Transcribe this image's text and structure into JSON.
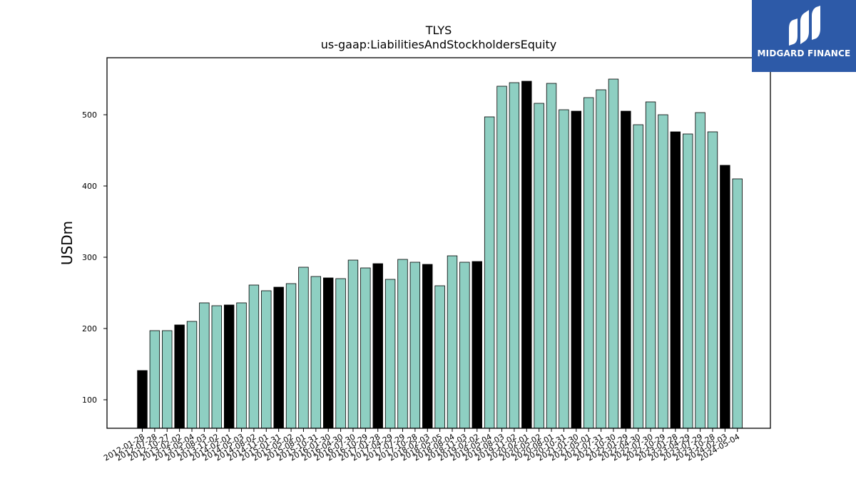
{
  "brand": {
    "name": "MIDGARD FINANCE",
    "bg_color": "#2d5aa8"
  },
  "chart_data": {
    "type": "bar",
    "title": "TLYS",
    "subtitle": "us-gaap:LiabilitiesAndStockholdersEquity",
    "xlabel": "",
    "ylabel": "USDm",
    "ylim": [
      60,
      580
    ],
    "yticks": [
      100,
      200,
      300,
      400,
      500
    ],
    "grid": false,
    "colors": {
      "regular": "#8ecfc2",
      "highlight": "#000000",
      "edge": "#000000"
    },
    "categories": [
      "2012-01-28",
      "2012-07-28",
      "2012-10-27",
      "2013-02-02",
      "2013-05-04",
      "2013-08-03",
      "2013-11-02",
      "2014-02-01",
      "2014-05-03",
      "2014-08-02",
      "2014-11-01",
      "2015-01-31",
      "2015-05-02",
      "2015-08-01",
      "2015-10-31",
      "2016-01-30",
      "2016-04-30",
      "2016-07-30",
      "2016-10-29",
      "2017-01-28",
      "2017-04-29",
      "2017-07-29",
      "2017-10-28",
      "2018-02-03",
      "2018-05-05",
      "2018-08-04",
      "2018-11-03",
      "2019-02-02",
      "2019-05-04",
      "2019-08-03",
      "2019-11-02",
      "2020-02-01",
      "2020-05-02",
      "2020-08-01",
      "2020-10-31",
      "2021-01-30",
      "2021-05-01",
      "2021-07-31",
      "2021-10-30",
      "2022-01-29",
      "2022-04-30",
      "2022-07-30",
      "2022-10-29",
      "2023-01-28",
      "2023-04-29",
      "2023-07-29",
      "2023-10-28",
      "2024-02-03",
      "2024-05-04"
    ],
    "tick_labels": [
      "2012-01-28",
      "2012-07-28",
      "2012-10-27",
      "2013-02-02",
      "2013-05-04",
      "2013-08-03",
      "2013-11-02",
      "2014-02-01",
      "2014-05-03",
      "2014-08-02",
      "2014-11-01",
      "2015-01-31",
      "2015-05-02",
      "2015-08-01",
      "2015-10-31",
      "2016-01-30",
      "2016-04-30",
      "2016-07-30",
      "2016-10-29",
      "2017-01-28",
      "2017-04-29",
      "2017-07-29",
      "2017-10-28",
      "2018-02-03",
      "2018-05-05",
      "2018-08-04",
      "2018-11-03",
      "2019-02-02",
      "2019-05-04",
      "2019-08-03",
      "2019-11-02",
      "2020-02-01",
      "2020-05-02",
      "2020-08-01",
      "2020-10-31",
      "2021-01-30",
      "2021-05-01",
      "2021-07-31",
      "2021-10-30",
      "2022-01-29",
      "2022-04-30",
      "2022-07-30",
      "2022-10-29",
      "2023-01-28",
      "2023-04-29",
      "2023-07-29",
      "2023-10-28",
      "2024-02-03",
      "2024-05-04"
    ],
    "values": [
      141,
      197,
      197,
      205,
      210,
      236,
      232,
      233,
      236,
      261,
      253,
      258,
      263,
      286,
      273,
      271,
      270,
      296,
      285,
      291,
      269,
      297,
      293,
      290,
      260,
      302,
      293,
      294,
      497,
      540,
      545,
      547,
      516,
      544,
      507,
      505,
      524,
      535,
      550,
      505,
      486,
      518,
      500,
      476,
      473,
      503,
      476,
      429,
      410
    ],
    "highlight": [
      true,
      false,
      false,
      true,
      false,
      false,
      false,
      true,
      false,
      false,
      false,
      true,
      false,
      false,
      false,
      true,
      false,
      false,
      false,
      true,
      false,
      false,
      false,
      true,
      false,
      false,
      false,
      true,
      false,
      false,
      false,
      true,
      false,
      false,
      false,
      true,
      false,
      false,
      false,
      true,
      false,
      false,
      false,
      true,
      false,
      false,
      false,
      true,
      false
    ]
  }
}
